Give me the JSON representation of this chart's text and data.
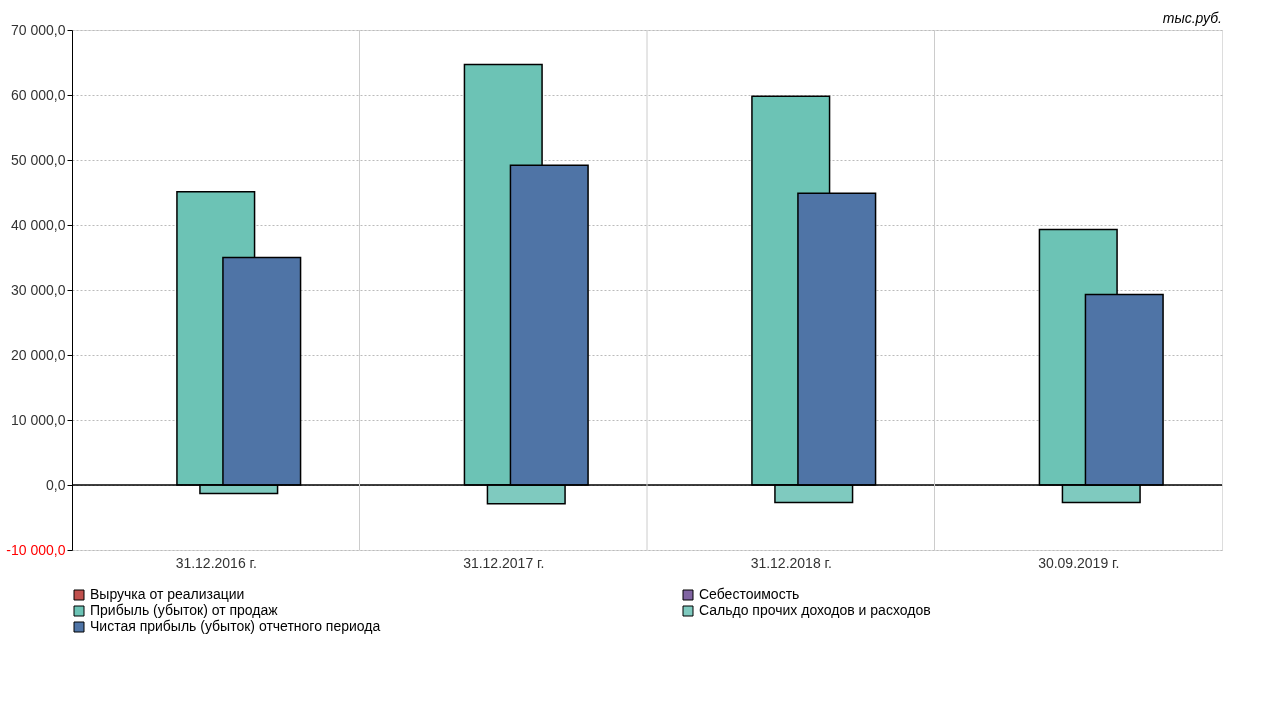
{
  "chart_data": {
    "type": "bar",
    "categories": [
      "31.12.2016 г.",
      "31.12.2017 г.",
      "31.12.2018 г.",
      "30.09.2019 г."
    ],
    "series": [
      {
        "name": "Выручка от реализации",
        "color": "#c0504d",
        "values": [
          null,
          null,
          null,
          null
        ]
      },
      {
        "name": "Себестоимость",
        "color": "#8064a2",
        "values": [
          null,
          null,
          null,
          null
        ]
      },
      {
        "name": "Прибыль (убыток) от продаж",
        "color": "#6cc3b5",
        "values": [
          45100,
          64700,
          59800,
          39300
        ]
      },
      {
        "name": "Сальдо прочих доходов и расходов",
        "color": "#7fcabf",
        "values": [
          -1300,
          -2900,
          -2700,
          -2700
        ]
      },
      {
        "name": "Чистая прибыль (убыток) отчетного периода",
        "color": "#4f74a6",
        "values": [
          35000,
          49200,
          44900,
          29300
        ]
      }
    ],
    "ylim": [
      -10000,
      70000
    ],
    "yticks": [
      {
        "value": -10000,
        "label": "-10 000,0"
      },
      {
        "value": 0,
        "label": "0,0"
      },
      {
        "value": 10000,
        "label": "10 000,0"
      },
      {
        "value": 20000,
        "label": "20 000,0"
      },
      {
        "value": 30000,
        "label": "30 000,0"
      },
      {
        "value": 40000,
        "label": "40 000,0"
      },
      {
        "value": 50000,
        "label": "50 000,0"
      },
      {
        "value": 60000,
        "label": "60 000,0"
      },
      {
        "value": 70000,
        "label": "70 000,0"
      }
    ],
    "annotations": [
      "тыс.руб."
    ],
    "grid": true,
    "legend": "bottom"
  }
}
